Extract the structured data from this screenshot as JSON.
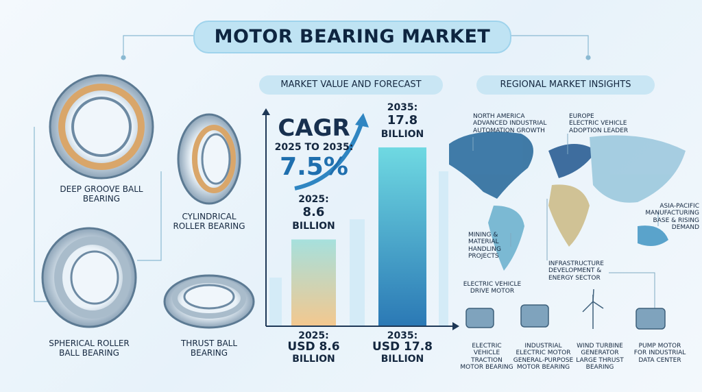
{
  "title": "MOTOR BEARING MARKET",
  "bearings": [
    {
      "label": "DEEP GROOVE BALL BEARING"
    },
    {
      "label": "CYLINDRICAL ROLLER BEARING"
    },
    {
      "label": "SPHERICAL ROLLER BALL BEARING"
    },
    {
      "label": "THRUST BALL BEARING"
    }
  ],
  "forecast": {
    "heading": "MARKET VALUE AND FORECAST",
    "cagr_label": "CAGR",
    "cagr_period": "2025 TO 2035:",
    "cagr_value": "7.5%",
    "bars": [
      {
        "year": "2025:",
        "value": 8.6,
        "unit": "BILLION",
        "footer_year": "2025:",
        "footer_value": "USD 8.6",
        "footer_unit": "BILLION"
      },
      {
        "year": "2035:",
        "value": 17.8,
        "unit": "BILLION",
        "footer_year": "2035:",
        "footer_value": "USD 17.8",
        "footer_unit": "BILLION"
      }
    ]
  },
  "regional": {
    "heading": "REGIONAL MARKET INSIGHTS",
    "regions": [
      {
        "name": "NORTH AMERICA",
        "note": "ADVANCED INDUSTRIAL AUTOMATION GROWTH"
      },
      {
        "name": "EUROPE",
        "note": "ELECTRIC VEHICLE ADOPTION LEADER"
      },
      {
        "name": "ASIA-PACIFIC",
        "note": "MANUFACTURING BASE & RISING DEMAND"
      },
      {
        "name": "MINING & MATERIAL",
        "note": "HANDLING PROJECTS"
      },
      {
        "name": "INFRASTRUCTURE",
        "note": "DEVELOPMENT & ENERGY SECTOR"
      },
      {
        "name": "ELECTRIC VEHICLE",
        "note": "DRIVE MOTOR"
      }
    ],
    "applications": [
      {
        "name": "ELECTRIC VEHICLE",
        "note": "TRACTION MOTOR BEARING"
      },
      {
        "name": "INDUSTRIAL ELECTRIC MOTOR",
        "note": "GENERAL-PURPOSE MOTOR BEARING"
      },
      {
        "name": "WIND TURBINE GENERATOR",
        "note": "LARGE THRUST BEARING"
      },
      {
        "name": "PUMP MOTOR",
        "note": "FOR INDUSTRIAL DATA CENTER"
      }
    ]
  }
}
